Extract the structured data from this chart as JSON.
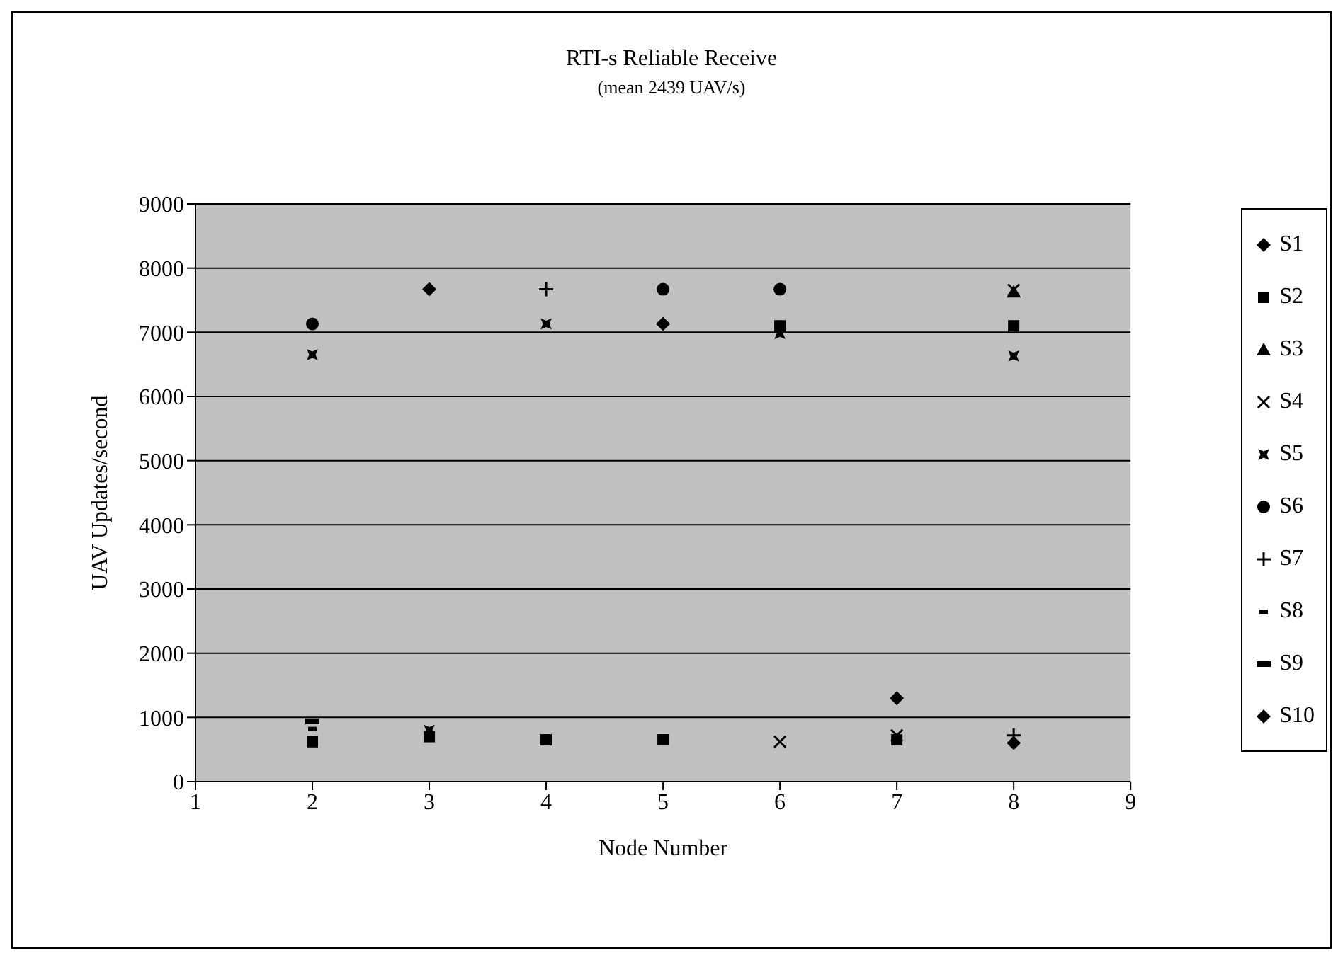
{
  "chart_data": {
    "type": "scatter",
    "title": "RTI-s Reliable Receive",
    "subtitle": "(mean 2439 UAV/s)",
    "xlabel": "Node Number",
    "ylabel": "UAV Updates/second",
    "x": [
      2,
      3,
      4,
      5,
      6,
      7,
      8
    ],
    "xlim": [
      1,
      9
    ],
    "xticks": [
      1,
      2,
      3,
      4,
      5,
      6,
      7,
      8,
      9
    ],
    "ylim": [
      0,
      9000
    ],
    "yticks": [
      0,
      1000,
      2000,
      3000,
      4000,
      5000,
      6000,
      7000,
      8000,
      9000
    ],
    "grid": "y",
    "legend": "right",
    "series": [
      {
        "name": "S1",
        "color": "#000000",
        "marker": "diamond",
        "values": [
          null,
          null,
          null,
          7130,
          null,
          1300,
          null
        ]
      },
      {
        "name": "S2",
        "color": "#000000",
        "marker": "square",
        "values": [
          620,
          700,
          650,
          650,
          7100,
          650,
          7100
        ]
      },
      {
        "name": "S3",
        "color": "#000000",
        "marker": "triangle",
        "values": [
          null,
          null,
          null,
          null,
          null,
          null,
          7630
        ]
      },
      {
        "name": "S4",
        "color": "#000000",
        "marker": "cross",
        "values": [
          null,
          null,
          null,
          null,
          620,
          720,
          7660
        ]
      },
      {
        "name": "S5",
        "color": "#000000",
        "marker": "star",
        "values": [
          6650,
          800,
          7130,
          null,
          6980,
          null,
          6630
        ]
      },
      {
        "name": "S6",
        "color": "#000000",
        "marker": "circle",
        "values": [
          7130,
          null,
          null,
          7670,
          7670,
          null,
          null
        ]
      },
      {
        "name": "S7",
        "color": "#000000",
        "marker": "cross",
        "values": [
          null,
          null,
          7670,
          null,
          null,
          null,
          720
        ]
      },
      {
        "name": "S8",
        "color": "#000000",
        "values": [
          820,
          null,
          null,
          null,
          null,
          null,
          null
        ]
      },
      {
        "name": "S9",
        "color": "#000000",
        "values": [
          940,
          null,
          null,
          null,
          null,
          null,
          null
        ]
      },
      {
        "name": "S10",
        "color": "#000000",
        "marker": "diamond",
        "values": [
          null,
          7670,
          null,
          null,
          null,
          null,
          600
        ]
      }
    ]
  }
}
